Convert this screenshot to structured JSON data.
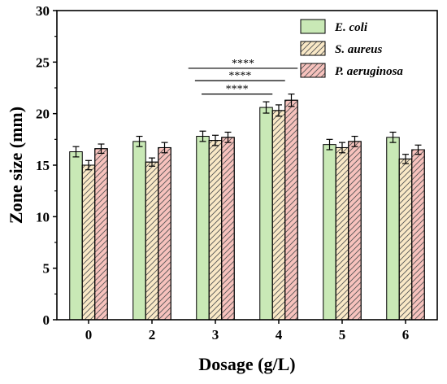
{
  "chart_data": {
    "type": "bar",
    "xlabel": "Dosage (g/L)",
    "ylabel": "Zone size (mm)",
    "categories": [
      "0",
      "2",
      "3",
      "4",
      "5",
      "6"
    ],
    "ylim": [
      0,
      30
    ],
    "yticks": [
      0,
      5,
      10,
      15,
      20,
      25,
      30
    ],
    "grid": false,
    "legend_position": "top-right",
    "series": [
      {
        "name": "E. coli",
        "color": "#c9e9b6",
        "pattern": "none",
        "values": [
          16.3,
          17.3,
          17.8,
          20.6,
          17.0,
          17.7
        ],
        "errors": [
          0.5,
          0.5,
          0.5,
          0.55,
          0.5,
          0.5
        ]
      },
      {
        "name": "S. aureus",
        "color": "#f9e8c6",
        "pattern": "hatch",
        "values": [
          15.0,
          15.3,
          17.4,
          20.3,
          16.7,
          15.6
        ],
        "errors": [
          0.45,
          0.4,
          0.5,
          0.55,
          0.5,
          0.45
        ]
      },
      {
        "name": "P. aeruginosa",
        "color": "#f7c2bd",
        "pattern": "hatch",
        "values": [
          16.6,
          16.7,
          17.7,
          21.3,
          17.3,
          16.5
        ],
        "errors": [
          0.45,
          0.5,
          0.5,
          0.6,
          0.5,
          0.45
        ]
      }
    ],
    "significance": [
      {
        "label": "****",
        "from_category": "3",
        "to_category": "4",
        "y": 24.4
      },
      {
        "label": "****",
        "from_category": "3",
        "to_category": "4",
        "y": 23.2
      },
      {
        "label": "****",
        "from_category": "3",
        "to_category": "4",
        "y": 21.9
      }
    ]
  }
}
